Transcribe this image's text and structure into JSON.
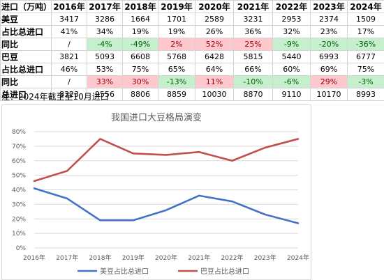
{
  "table": {
    "header": [
      "进口（万吨）",
      "2016年",
      "2017年",
      "2018年",
      "2019年",
      "2020年",
      "2021年",
      "2022年",
      "2023年",
      "2024年"
    ],
    "rows": [
      {
        "label": "美豆",
        "cells": [
          "3417",
          "3286",
          "1664",
          "1701",
          "2589",
          "3231",
          "2953",
          "2374",
          "1509"
        ]
      },
      {
        "label": "占比总进口",
        "cells": [
          "41%",
          "34%",
          "19%",
          "19%",
          "26%",
          "36%",
          "32%",
          "23%",
          "17%"
        ]
      },
      {
        "label": "同比",
        "cells": [
          "/",
          "-4%",
          "-49%",
          "2%",
          "52%",
          "25%",
          "-9%",
          "-20%",
          "-36%"
        ],
        "status": [
          "none",
          "neg",
          "neg",
          "pos",
          "pos",
          "pos",
          "neg",
          "neg",
          "neg"
        ]
      },
      {
        "label": "巴豆",
        "cells": [
          "3821",
          "5093",
          "6608",
          "5768",
          "6428",
          "5815",
          "5440",
          "6993",
          "6777"
        ]
      },
      {
        "label": "占比总进口",
        "cells": [
          "46%",
          "53%",
          "75%",
          "65%",
          "64%",
          "66%",
          "60%",
          "69%",
          "75%"
        ]
      },
      {
        "label": "同比",
        "cells": [
          "/",
          "33%",
          "30%",
          "-13%",
          "11%",
          "-10%",
          "-6%",
          "29%",
          "-3%"
        ],
        "status": [
          "none",
          "pos",
          "pos",
          "neg",
          "pos",
          "neg",
          "neg",
          "pos",
          "neg"
        ]
      },
      {
        "label": "总进口",
        "cells": [
          "8323",
          "9556",
          "8806",
          "8859",
          "10030",
          "8870",
          "9110",
          "10170",
          "8993"
        ]
      }
    ]
  },
  "note": "注：2024年截至至10月进口",
  "colors": {
    "series1": "#4472c4",
    "series2": "#c0504d",
    "neg_fill": "#c6efce",
    "pos_fill": "#ffc7ce"
  },
  "chart_data": {
    "type": "line",
    "title": "我国进口大豆格局演变",
    "categories": [
      "2016年",
      "2017年",
      "2018年",
      "2019年",
      "2020年",
      "2021年",
      "2022年",
      "2023年",
      "2024年"
    ],
    "y_ticks": [
      "0%",
      "10%",
      "20%",
      "30%",
      "40%",
      "50%",
      "60%",
      "70%",
      "80%"
    ],
    "ylim": [
      0,
      80
    ],
    "grid": true,
    "legend_position": "bottom",
    "series": [
      {
        "name": "美豆占比总进口",
        "values": [
          41,
          34,
          19,
          19,
          26,
          36,
          32,
          23,
          17
        ],
        "color": "#4472c4"
      },
      {
        "name": "巴豆占比总进口",
        "values": [
          46,
          53,
          75,
          65,
          64,
          66,
          60,
          69,
          75
        ],
        "color": "#c0504d"
      }
    ]
  }
}
